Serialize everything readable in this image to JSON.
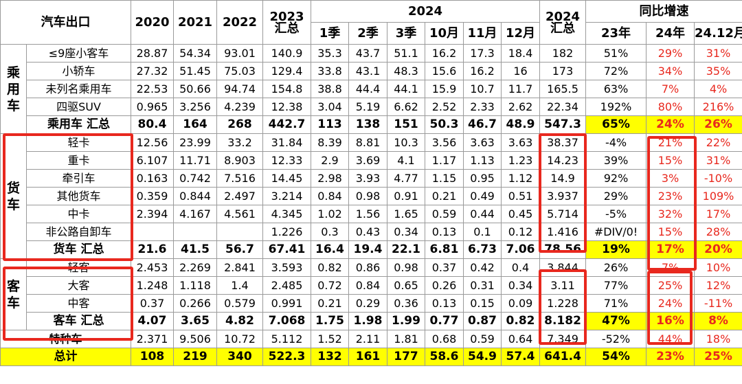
{
  "header": {
    "label": "汽车出口",
    "years": [
      "2020",
      "2021",
      "2022"
    ],
    "col2023": [
      "2023",
      "汇总"
    ],
    "year2024": "2024",
    "periods": [
      "1季",
      "2季",
      "3季",
      "10月",
      "11月",
      "12月"
    ],
    "sum2024": [
      "2024",
      "汇总"
    ],
    "growth": "同比增速",
    "growth_cols": [
      "23年",
      "24年",
      "24.12月"
    ]
  },
  "sections": [
    {
      "group": "乘用车",
      "rows": [
        {
          "label": "≤9座小客车",
          "cells": [
            "28.87",
            "54.34",
            "93.01",
            "140.9",
            "35.3",
            "43.7",
            "51.1",
            "16.2",
            "17.3",
            "18.4",
            "182",
            "51%",
            "29%",
            "31%"
          ]
        },
        {
          "label": "小轿车",
          "cells": [
            "27.32",
            "51.45",
            "75.03",
            "129.4",
            "33.8",
            "43.1",
            "48.3",
            "15.6",
            "16.2",
            "16",
            "173",
            "72%",
            "34%",
            "35%"
          ]
        },
        {
          "label": "未列名乘用车",
          "cells": [
            "22.53",
            "50.66",
            "94.74",
            "154.8",
            "38.8",
            "44.4",
            "44.1",
            "15.9",
            "10.7",
            "11.7",
            "165.5",
            "63%",
            "7%",
            "4%"
          ]
        },
        {
          "label": "四驱SUV",
          "cells": [
            "0.965",
            "3.256",
            "4.239",
            "12.38",
            "3.04",
            "5.19",
            "6.62",
            "2.52",
            "2.33",
            "2.62",
            "22.34",
            "192%",
            "80%",
            "216%"
          ]
        }
      ],
      "total": {
        "label": "乘用车 汇总",
        "cells": [
          "80.4",
          "164",
          "268",
          "442.7",
          "113",
          "138",
          "151",
          "50.3",
          "46.7",
          "48.9",
          "547.3",
          "65%",
          "24%",
          "26%"
        ]
      }
    },
    {
      "group": "货车",
      "rows": [
        {
          "label": "轻卡",
          "cells": [
            "12.56",
            "23.99",
            "33.2",
            "31.84",
            "8.39",
            "8.81",
            "10.3",
            "3.56",
            "3.63",
            "3.63",
            "38.37",
            "-4%",
            "21%",
            "22%"
          ]
        },
        {
          "label": "重卡",
          "cells": [
            "6.107",
            "11.71",
            "8.903",
            "12.33",
            "2.9",
            "3.69",
            "4.1",
            "1.17",
            "1.13",
            "1.23",
            "14.23",
            "39%",
            "15%",
            "31%"
          ]
        },
        {
          "label": "牵引车",
          "cells": [
            "0.163",
            "0.742",
            "7.516",
            "14.45",
            "2.98",
            "3.93",
            "4.77",
            "1.15",
            "0.95",
            "1.12",
            "14.9",
            "92%",
            "3%",
            "-10%"
          ]
        },
        {
          "label": "其他货车",
          "cells": [
            "0.359",
            "0.844",
            "2.497",
            "3.214",
            "0.84",
            "0.98",
            "0.91",
            "0.21",
            "0.49",
            "0.51",
            "3.937",
            "29%",
            "23%",
            "109%"
          ]
        },
        {
          "label": "中卡",
          "cells": [
            "2.394",
            "4.167",
            "4.561",
            "4.345",
            "1.02",
            "1.56",
            "1.65",
            "0.59",
            "0.44",
            "0.45",
            "5.714",
            "-5%",
            "32%",
            "17%"
          ]
        },
        {
          "label": "非公路自卸车",
          "cells": [
            null,
            null,
            null,
            "1.226",
            "0.3",
            "0.43",
            "0.34",
            "0.13",
            "0.1",
            "0.12",
            "1.416",
            "#DIV/0!",
            "15%",
            "28%"
          ]
        }
      ],
      "total": {
        "label": "货车 汇总",
        "cells": [
          "21.6",
          "41.5",
          "56.7",
          "67.41",
          "16.4",
          "19.4",
          "22.1",
          "6.81",
          "6.73",
          "7.06",
          "78.56",
          "19%",
          "17%",
          "20%"
        ]
      }
    },
    {
      "group": "客车",
      "rows": [
        {
          "label": "轻客",
          "cells": [
            "2.453",
            "2.269",
            "2.841",
            "3.593",
            "0.82",
            "0.86",
            "0.98",
            "0.37",
            "0.42",
            "0.4",
            "3.844",
            "26%",
            "7%",
            "10%"
          ]
        },
        {
          "label": "大客",
          "cells": [
            "1.248",
            "1.118",
            "1.4",
            "2.485",
            "0.72",
            "0.84",
            "0.65",
            "0.26",
            "0.31",
            "0.34",
            "3.11",
            "77%",
            "25%",
            "12%"
          ]
        },
        {
          "label": "中客",
          "cells": [
            "0.37",
            "0.266",
            "0.579",
            "0.991",
            "0.21",
            "0.29",
            "0.36",
            "0.13",
            "0.15",
            "0.09",
            "1.228",
            "71%",
            "24%",
            "-11%"
          ]
        }
      ],
      "total": {
        "label": "客车 汇总",
        "cells": [
          "4.07",
          "3.65",
          "4.82",
          "7.068",
          "1.75",
          "1.98",
          "1.99",
          "0.77",
          "0.87",
          "0.82",
          "8.182",
          "47%",
          "16%",
          "8%"
        ]
      }
    }
  ],
  "special": {
    "label": "特种车",
    "cells": [
      "2.371",
      "9.506",
      "10.72",
      "5.112",
      "1.52",
      "2.11",
      "1.81",
      "0.68",
      "0.59",
      "0.64",
      "7.349",
      "-52%",
      "44%",
      "18%"
    ]
  },
  "grand_total": {
    "label": "总计",
    "cells": [
      "108",
      "219",
      "340",
      "522.3",
      "132",
      "161",
      "177",
      "58.6",
      "54.9",
      "57.4",
      "641.4",
      "54%",
      "23%",
      "25%"
    ]
  }
}
